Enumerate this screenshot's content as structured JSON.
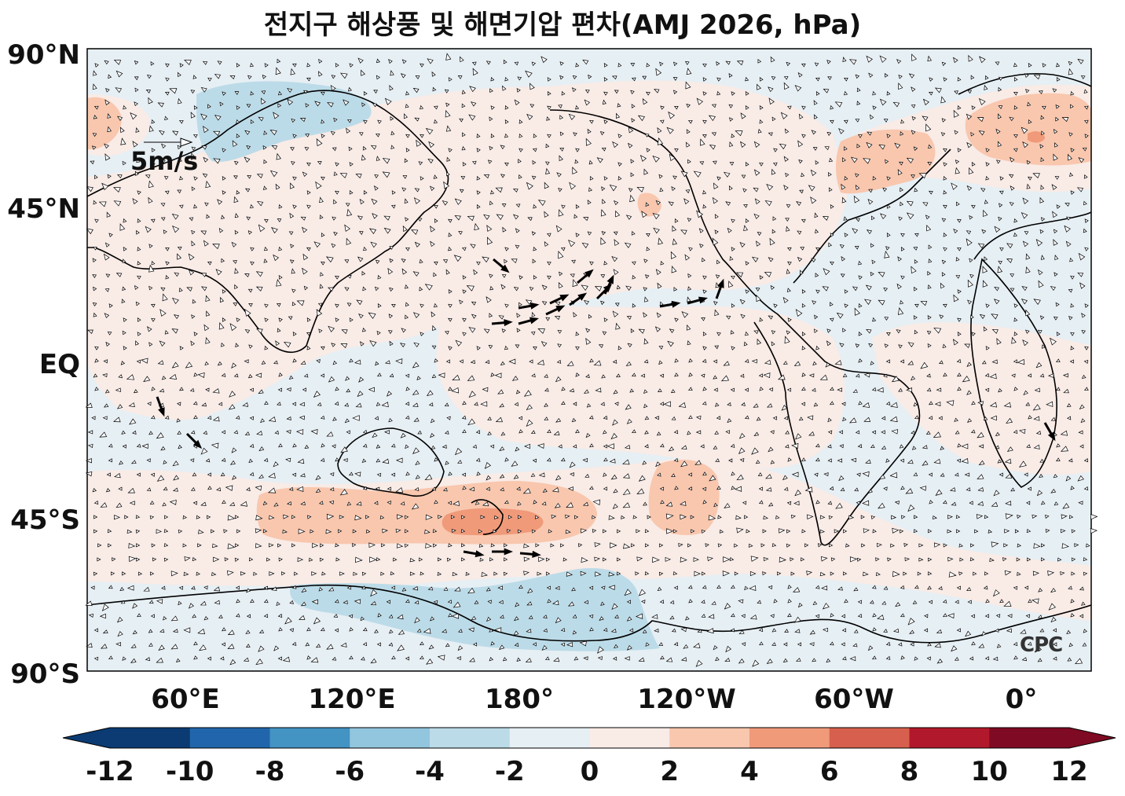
{
  "title": "전지구 해상풍 및 해면기압 편차(AMJ 2026, hPa)",
  "lat_ticks": [
    "90°N",
    "45°N",
    "EQ",
    "45°S",
    "90°S"
  ],
  "lon_ticks": [
    "60°E",
    "120°E",
    "180°",
    "120°W",
    "60°W",
    "0°"
  ],
  "wind_reference": "5m/s",
  "logo": "CPC",
  "colorbar": {
    "labels": [
      "-12",
      "-10",
      "-8",
      "-6",
      "-4",
      "-2",
      "0",
      "2",
      "4",
      "6",
      "8",
      "10",
      "12"
    ],
    "colors": [
      "#0b3b72",
      "#2166ac",
      "#4393c3",
      "#92c5de",
      "#bcdbe8",
      "#e6eff4",
      "#f9ebe6",
      "#f8c7ae",
      "#f09a7a",
      "#d6604d",
      "#b2182b",
      "#7f0a23"
    ],
    "extend": "both"
  },
  "colors": {
    "negative_small": "#e6eff4",
    "negative_medium": "#bcdbe8",
    "positive_small": "#f9ebe6",
    "positive_medium": "#f8c7ae",
    "positive_large": "#f09a7a"
  }
}
